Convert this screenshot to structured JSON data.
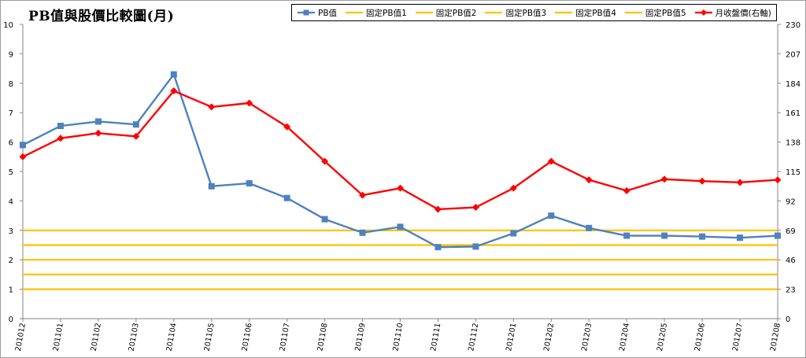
{
  "title": "PB值與股價比較圖(月)",
  "colors": {
    "pb": "#4F81BD",
    "fixed": "#FFC000",
    "price": "#FF0000",
    "axis": "#868686"
  },
  "legend": {
    "items": [
      {
        "label": "PB值",
        "color": "#4F81BD",
        "marker": "square"
      },
      {
        "label": "固定PB值1",
        "color": "#FFC000",
        "marker": "none"
      },
      {
        "label": "固定PB值2",
        "color": "#FFC000",
        "marker": "none"
      },
      {
        "label": "固定PB值3",
        "color": "#FFC000",
        "marker": "none"
      },
      {
        "label": "固定PB值4",
        "color": "#FFC000",
        "marker": "none"
      },
      {
        "label": "固定PB值5",
        "color": "#FFC000",
        "marker": "none"
      },
      {
        "label": "月收盤價(右軸)",
        "color": "#FF0000",
        "marker": "diamond"
      }
    ],
    "placement": "top-right"
  },
  "chart_data": {
    "type": "line",
    "title": "PB值與股價比較圖(月)",
    "categories": [
      "201012",
      "201101",
      "201102",
      "201103",
      "201104",
      "201105",
      "201106",
      "201107",
      "201108",
      "201109",
      "201110",
      "201111",
      "201112",
      "201201",
      "201202",
      "201203",
      "201204",
      "201205",
      "201206",
      "201207",
      "201208"
    ],
    "left_axis": {
      "min": 0,
      "max": 10,
      "ticks": [
        "0",
        "1",
        "2",
        "3",
        "4",
        "5",
        "6",
        "7",
        "8",
        "9",
        "10"
      ]
    },
    "right_axis": {
      "min": 0,
      "max": 230,
      "ticks": [
        "0",
        "23",
        "46",
        "69",
        "92",
        "115",
        "138",
        "161",
        "184",
        "207",
        "230"
      ]
    },
    "grid": false,
    "series": [
      {
        "name": "PB值",
        "axis": "left",
        "marker": "square",
        "values": [
          5.9,
          6.55,
          6.7,
          6.6,
          8.3,
          4.5,
          4.6,
          4.1,
          3.38,
          2.92,
          3.12,
          2.43,
          2.45,
          2.9,
          3.5,
          3.08,
          2.82,
          2.82,
          2.79,
          2.75,
          2.82
        ]
      },
      {
        "name": "固定PB值1",
        "axis": "left",
        "constant": 1.0
      },
      {
        "name": "固定PB值2",
        "axis": "left",
        "constant": 1.5
      },
      {
        "name": "固定PB值3",
        "axis": "left",
        "constant": 2.0
      },
      {
        "name": "固定PB值4",
        "axis": "left",
        "constant": 2.5
      },
      {
        "name": "固定PB值5",
        "axis": "left",
        "constant": 3.0
      },
      {
        "name": "月收盤價(右軸)",
        "axis": "right",
        "marker": "diamond",
        "values": [
          126.5,
          141,
          145,
          142.5,
          178,
          165.5,
          168.5,
          150,
          123,
          96.5,
          102,
          85.5,
          87,
          102,
          123,
          108.5,
          100,
          109,
          107.5,
          106.5,
          108.5
        ]
      }
    ]
  }
}
